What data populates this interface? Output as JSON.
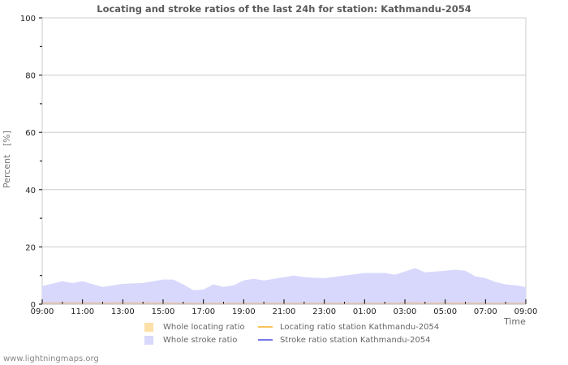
{
  "chart_data": {
    "type": "area",
    "title": "Locating and stroke ratios of the last 24h for station: Kathmandu-2054",
    "xlabel": "Time",
    "ylabel": "Percent   [%]",
    "ylim": [
      0,
      100
    ],
    "yticks": [
      0,
      20,
      40,
      60,
      80,
      100
    ],
    "xticks": [
      "09:00",
      "11:00",
      "13:00",
      "15:00",
      "17:00",
      "19:00",
      "21:00",
      "23:00",
      "01:00",
      "03:00",
      "05:00",
      "07:00",
      "09:00"
    ],
    "grid": true,
    "legend_position": "bottom",
    "x_hours": [
      0,
      1,
      1.5,
      2,
      3,
      4,
      5,
      6,
      6.5,
      7,
      7.5,
      8,
      8.5,
      9,
      9.5,
      10,
      10.5,
      11,
      12,
      12.5,
      13,
      14,
      15,
      16,
      17,
      17.5,
      18,
      18.5,
      19,
      20,
      20.5,
      21,
      21.5,
      22,
      22.5,
      23,
      23.5,
      24
    ],
    "series": [
      {
        "name": "Whole locating ratio",
        "kind": "area",
        "color": "#fde0a8",
        "values": [
          0.8,
          0.8,
          0.8,
          0.8,
          0.7,
          0.8,
          0.8,
          0.7,
          0.7,
          0.6,
          0.6,
          0.5,
          0.6,
          0.6,
          0.6,
          0.6,
          0.6,
          0.6,
          0.6,
          0.6,
          0.6,
          0.6,
          0.6,
          0.6,
          0.6,
          0.6,
          0.8,
          0.8,
          0.7,
          0.7,
          0.7,
          0.7,
          0.7,
          0.6,
          0.6,
          0.6,
          0.6,
          0.6
        ]
      },
      {
        "name": "Whole stroke ratio",
        "kind": "area",
        "color": "#d8d8fc",
        "values": [
          6.3,
          8.0,
          7.4,
          8.0,
          6.0,
          7.1,
          7.4,
          8.6,
          8.6,
          6.9,
          4.9,
          5.1,
          6.9,
          6.0,
          6.6,
          8.3,
          8.9,
          8.3,
          9.4,
          10.0,
          9.4,
          9.1,
          10.0,
          10.9,
          10.9,
          10.3,
          11.4,
          12.6,
          11.1,
          11.7,
          12.0,
          11.7,
          9.7,
          9.1,
          7.7,
          6.9,
          6.6,
          6.0
        ]
      },
      {
        "name": "Locating ratio station Kathmandu-2054",
        "kind": "line",
        "color": "#f7c35a",
        "values": []
      },
      {
        "name": "Stroke ratio station Kathmandu-2054",
        "kind": "line",
        "color": "#7777ee",
        "values": []
      }
    ]
  },
  "footer": "www.lightningmaps.org"
}
